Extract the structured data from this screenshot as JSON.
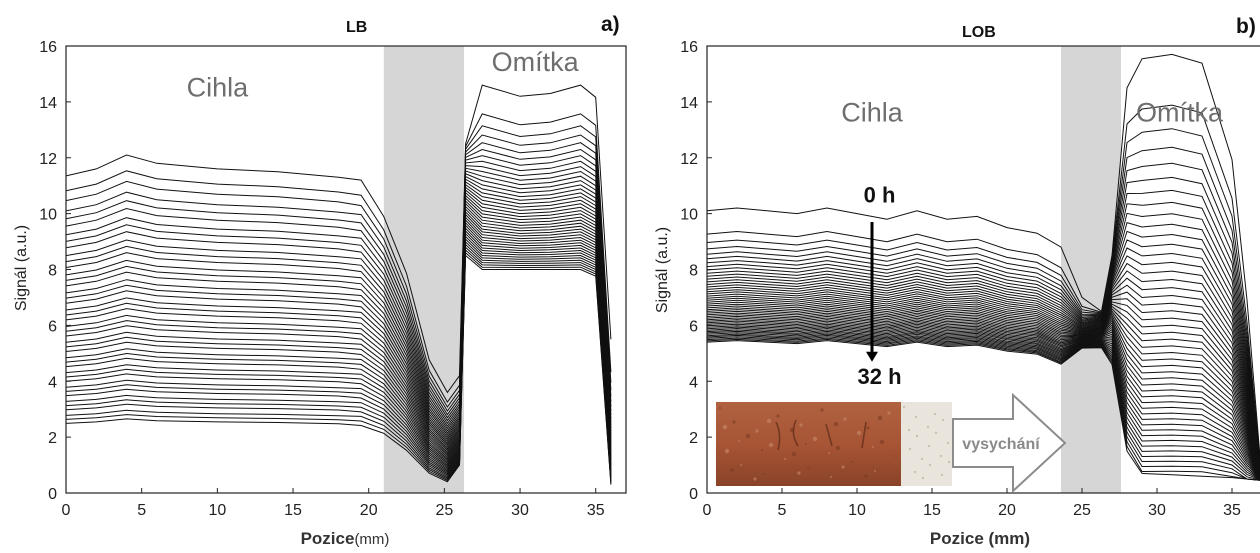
{
  "chart_data": [
    {
      "type": "line",
      "panel_tag": "a)",
      "title": "LB",
      "xlabel": "Pozice",
      "xlabel_unit": "(mm)",
      "ylabel": "Signál (a.u.)",
      "xlim": [
        0,
        37
      ],
      "ylim": [
        0,
        16
      ],
      "xticks": [
        0,
        5,
        10,
        15,
        20,
        25,
        30,
        35
      ],
      "yticks": [
        0,
        2,
        4,
        6,
        8,
        10,
        12,
        14,
        16
      ],
      "grid": false,
      "shaded_band": [
        21,
        26.3
      ],
      "annotations": [
        {
          "text": "Cihla",
          "x": 10,
          "y": 14.2
        },
        {
          "text": "Omítka",
          "x": 31,
          "y": 15.1
        }
      ],
      "profile_shape": {
        "x": [
          0,
          2,
          4,
          6,
          10,
          14,
          18,
          19.5,
          21,
          22.5,
          24,
          25.2,
          26.0,
          26.4,
          27.5,
          30,
          32,
          34,
          35,
          36
        ],
        "brick_anchor_x": [
          0,
          2,
          4,
          6,
          10,
          14,
          18,
          19.5,
          21
        ],
        "note_first_curve_y": [
          11.35,
          11.6,
          12.1,
          11.8,
          11.6,
          11.5,
          11.3,
          11.2,
          10.0,
          7.0,
          4.6,
          3.6,
          4.0,
          12.5,
          14.8,
          14.2,
          14.3,
          14.6,
          14.1,
          5.5
        ]
      },
      "series_count": 42,
      "series_first_brick_level": 11.35,
      "series_last_brick_level": 2.45,
      "series_first_plaster_level": 14.6,
      "series_last_plaster_level": 8.0,
      "series_first_dip_level": 3.6,
      "series_last_dip_level": 0.4
    },
    {
      "type": "line",
      "panel_tag": "b)",
      "title": "LOB",
      "xlabel": "Pozice (mm)",
      "ylabel": "Signál (a.u.)",
      "xlim": [
        0,
        37
      ],
      "ylim": [
        0,
        16
      ],
      "xticks": [
        0,
        5,
        10,
        15,
        20,
        25,
        30,
        35
      ],
      "yticks": [
        0,
        2,
        4,
        6,
        8,
        10,
        12,
        14,
        16
      ],
      "grid": false,
      "shaded_band": [
        23.6,
        27.6
      ],
      "annotations": [
        {
          "text": "Cihla",
          "x": 11,
          "y": 13.3
        },
        {
          "text": "Omítka",
          "x": 31.5,
          "y": 13.3
        },
        {
          "text": "0 h",
          "x": 11.5,
          "y": 10.4,
          "bold": true
        },
        {
          "text": "32 h",
          "x": 11.5,
          "y": 3.9,
          "bold": true
        },
        {
          "text": "vysychání",
          "x": 25.5,
          "y": 1.7
        }
      ],
      "time_arrow": {
        "x": 11,
        "y_from": 9.7,
        "y_to": 4.7
      },
      "profile_shape": {
        "x": [
          0,
          2,
          4,
          6,
          8,
          10,
          12,
          14,
          16,
          18,
          20,
          22,
          23.6,
          25,
          26.3,
          27,
          28,
          29,
          31,
          33,
          35,
          36,
          37
        ],
        "note_first_curve_y": [
          10.1,
          10.2,
          10.1,
          10.0,
          10.2,
          10.0,
          9.8,
          10.1,
          9.8,
          9.9,
          9.5,
          9.3,
          9.0,
          7.8,
          6.5,
          8.5,
          14.5,
          15.6,
          15.8,
          15.5,
          12.0,
          7.0,
          1.0
        ]
      },
      "series_count": 48,
      "series_first_brick_level": 10.1,
      "series_last_brick_level": 5.4,
      "series_first_peak_level": 15.7,
      "series_last_peak_level": 0.6,
      "inset": {
        "description_words": "vysychání"
      }
    }
  ]
}
